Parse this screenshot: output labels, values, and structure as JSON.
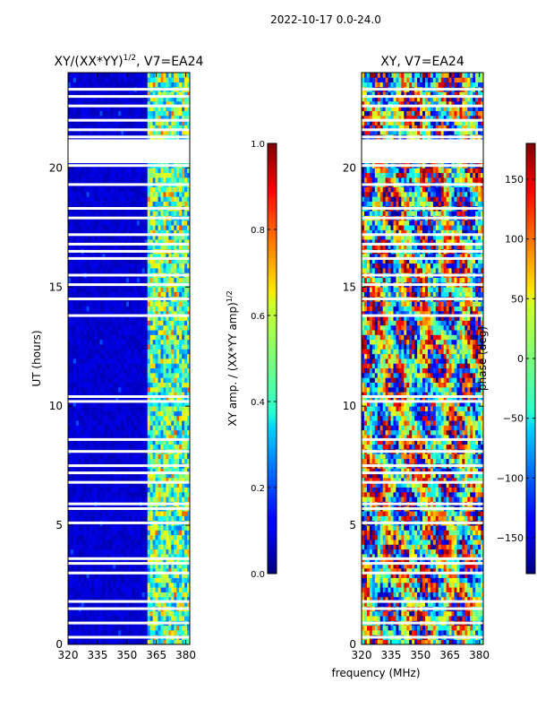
{
  "suptitle": "2022-10-17 0.0-24.0",
  "xlabel": "frequency (MHz)",
  "chart_data": [
    {
      "type": "heatmap",
      "title_main": "XY/(XX*YY)",
      "title_exp": "1/2",
      "title_tail": ", V7=EA24",
      "ylabel": "UT (hours)",
      "xlim": [
        320,
        382
      ],
      "ylim": [
        0,
        24
      ],
      "xticks": [
        "320",
        "335",
        "350",
        "365",
        "380"
      ],
      "xtick_values": [
        320,
        335,
        350,
        365,
        380
      ],
      "yticks": [
        "0",
        "5",
        "10",
        "15",
        "20"
      ],
      "ytick_values": [
        0,
        5,
        10,
        15,
        20
      ],
      "colormap": "jet",
      "colorbar": {
        "label_main": "XY amp. / (XX*YY amp)",
        "label_exp": "1/2",
        "range": [
          0.0,
          1.0
        ],
        "ticks": [
          "0.0",
          "0.2",
          "0.4",
          "0.6",
          "0.8",
          "1.0"
        ],
        "tick_values": [
          0.0,
          0.2,
          0.4,
          0.6,
          0.8,
          1.0
        ]
      },
      "bright_band_mhz": [
        361,
        382
      ],
      "flagged_hours": [
        0.3,
        0.9,
        1.5,
        1.8,
        3.0,
        3.4,
        3.6,
        5.1,
        5.7,
        5.9,
        6.8,
        7.2,
        7.5,
        8.1,
        8.6,
        10.2,
        10.4,
        13.8,
        14.5,
        15.1,
        15.5,
        16.2,
        16.5,
        16.8,
        17.2,
        17.9,
        18.3,
        19.3,
        20.1,
        21.0,
        21.3,
        21.6,
        22.0,
        22.6,
        23.0,
        23.3
      ]
    },
    {
      "type": "heatmap",
      "title": "XY, V7=EA24",
      "xlim": [
        320,
        382
      ],
      "ylim": [
        0,
        24
      ],
      "xticks": [
        "320",
        "335",
        "350",
        "365",
        "380"
      ],
      "xtick_values": [
        320,
        335,
        350,
        365,
        380
      ],
      "yticks": [
        "0",
        "5",
        "10",
        "15",
        "20"
      ],
      "ytick_values": [
        0,
        5,
        10,
        15,
        20
      ],
      "colormap": "jet",
      "colorbar": {
        "label": "phase (deg)",
        "range": [
          -180,
          180
        ],
        "ticks": [
          "−150",
          "−100",
          "−50",
          "0",
          "50",
          "100",
          "150"
        ],
        "tick_values": [
          -150,
          -100,
          -50,
          0,
          50,
          100,
          150
        ]
      },
      "flagged_hours": [
        0.3,
        0.9,
        1.5,
        1.8,
        3.0,
        3.4,
        3.6,
        5.1,
        5.7,
        5.9,
        6.8,
        7.2,
        7.5,
        8.1,
        8.6,
        10.2,
        10.4,
        13.8,
        14.5,
        15.1,
        15.5,
        16.2,
        16.5,
        16.8,
        17.2,
        17.9,
        18.3,
        19.3,
        20.1,
        21.0,
        21.3,
        21.6,
        22.0,
        22.6,
        23.0,
        23.3
      ]
    }
  ]
}
